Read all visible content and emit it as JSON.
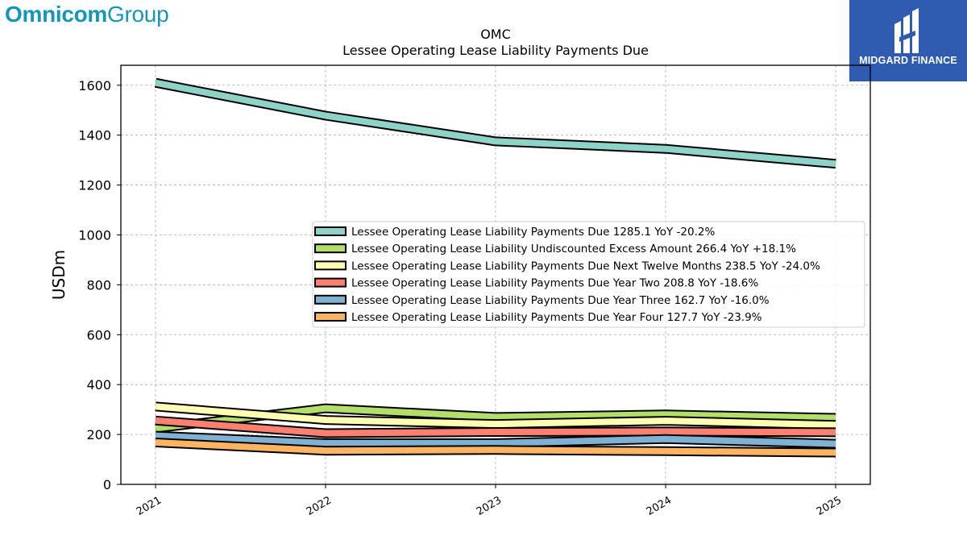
{
  "header": {
    "brand_left_bold": "Omnicom",
    "brand_left_light": "Group",
    "brand_left_color": "#1596b5",
    "brand_right_label": "MIDGARD FINANCE",
    "brand_right_bg": "#2f5cb0"
  },
  "chart_data": {
    "type": "line",
    "title": "OMC",
    "subtitle": "Lessee Operating Lease Liability Payments Due",
    "xlabel": "",
    "ylabel": "USDm",
    "x": [
      "2021",
      "2022",
      "2023",
      "2024",
      "2025"
    ],
    "ylim": [
      0,
      1680
    ],
    "yticks": [
      0,
      200,
      400,
      600,
      800,
      1000,
      1200,
      1400,
      1600
    ],
    "grid": true,
    "legend_position": "center-right",
    "series": [
      {
        "name": "Lessee Operating Lease Liability Payments Due",
        "legend": "Lessee Operating Lease Liability Payments Due  1285.1 YoY -20.2%",
        "color": "#8dd3c7",
        "values": [
          1610,
          1478,
          1375,
          1345,
          1285.1
        ]
      },
      {
        "name": "Lessee Operating Lease Liability Undiscounted Excess Amount",
        "legend": "Lessee Operating Lease Liability Undiscounted Excess Amount  266.4 YoY +18.1%",
        "color": "#b3de69",
        "values": [
          225,
          305,
          270,
          280,
          266.4
        ]
      },
      {
        "name": "Lessee Operating Lease Liability Payments Due Next Twelve Months",
        "legend": "Lessee Operating Lease Liability Payments Due Next Twelve Months  238.5 YoY -24.0%",
        "color": "#ffffb3",
        "values": [
          312,
          258,
          242,
          255,
          238.5
        ]
      },
      {
        "name": "Lessee Operating Lease Liability Payments Due Year Two",
        "legend": "Lessee Operating Lease Liability Payments Due Year Two  208.8 YoY -18.6%",
        "color": "#fb8072",
        "values": [
          256,
          205,
          210,
          212,
          208.8
        ]
      },
      {
        "name": "Lessee Operating Lease Liability Payments Due Year Three",
        "legend": "Lessee Operating Lease Liability Payments Due Year Three  162.7 YoY -16.0%",
        "color": "#80b1d3",
        "values": [
          195,
          165,
          165,
          182,
          162.7
        ]
      },
      {
        "name": "Lessee Operating Lease Liability Payments Due Year Four",
        "legend": "Lessee Operating Lease Liability Payments Due Year Four  127.7 YoY -23.9%",
        "color": "#fdb462",
        "values": [
          168,
          135,
          138,
          133,
          127.7
        ]
      }
    ]
  }
}
